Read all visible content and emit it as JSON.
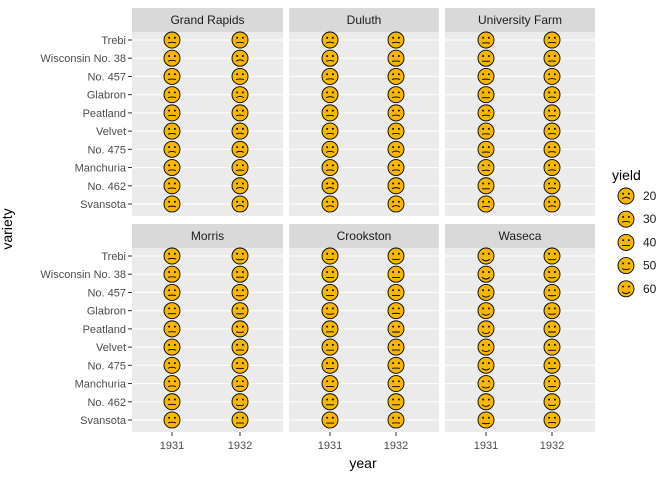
{
  "chart_data": {
    "type": "scatter",
    "xlabel": "year",
    "ylabel": "variety",
    "x_categories": [
      "1931",
      "1932"
    ],
    "y_categories": [
      "Trebi",
      "Wisconsin No. 38",
      "No. 457",
      "Glabron",
      "Peatland",
      "Velvet",
      "No. 475",
      "Manchuria",
      "No. 462",
      "Svansota"
    ],
    "marker": "smiley-face",
    "marker_color": "#f5b700",
    "panels": [
      {
        "site": "Grand Rapids",
        "series": [
          {
            "year": "1931",
            "values": [
              30,
              29,
              35,
              33,
              33,
              33,
              30,
              33,
              32,
              30
            ]
          },
          {
            "year": "1932",
            "values": [
              32,
              24,
              35,
              26,
              32,
              29,
              29,
              34,
              25,
              17
            ]
          }
        ]
      },
      {
        "site": "Duluth",
        "series": [
          {
            "year": "1931",
            "values": [
              31,
              32,
              33,
              29,
              33,
              32,
              28,
              33,
              27,
              25
            ]
          },
          {
            "year": "1932",
            "values": [
              30,
              38,
              32,
              31,
              31,
              32,
              26,
              33,
              27,
              24
            ]
          }
        ]
      },
      {
        "site": "University Farm",
        "series": [
          {
            "year": "1931",
            "values": [
              37,
              40,
              36,
              40,
              32,
              36,
              36,
              36,
              40,
              33
            ]
          },
          {
            "year": "1932",
            "values": [
              33,
              36,
              30,
              31,
              37,
              32,
              33,
              31,
              30,
              27
            ]
          }
        ]
      },
      {
        "site": "Morris",
        "series": [
          {
            "year": "1931",
            "values": [
              34,
              35,
              36,
              40,
              37,
              33,
              27,
              33,
              35,
              31
            ]
          },
          {
            "year": "1932",
            "values": [
              48,
              39,
              44,
              42,
              44,
              38,
              40,
              35,
              49,
              39
            ]
          }
        ]
      },
      {
        "site": "Crookston",
        "series": [
          {
            "year": "1931",
            "values": [
              46,
              43,
              41,
              45,
              39,
              41,
              44,
              39,
              40,
              41
            ]
          },
          {
            "year": "1932",
            "values": [
              45,
              43,
              40,
              35,
              41,
              38,
              37,
              41,
              40,
              38
            ]
          }
        ]
      },
      {
        "site": "Waseca",
        "series": [
          {
            "year": "1931",
            "values": [
              63,
              64,
              58,
              57,
              58,
              56,
              58,
              55,
              58,
              48
            ]
          },
          {
            "year": "1932",
            "values": [
              49,
              48,
              43,
              47,
              41,
              42,
              44,
              42,
              48,
              34
            ]
          }
        ]
      }
    ],
    "legend": {
      "title": "yield",
      "position": "right",
      "entries": [
        {
          "label": "20",
          "value": 20
        },
        {
          "label": "30",
          "value": 30
        },
        {
          "label": "40",
          "value": 40
        },
        {
          "label": "50",
          "value": 50
        },
        {
          "label": "60",
          "value": 60
        }
      ]
    },
    "panel_background": "#ebebeb",
    "strip_background": "#d9d9d9",
    "grid": true
  }
}
